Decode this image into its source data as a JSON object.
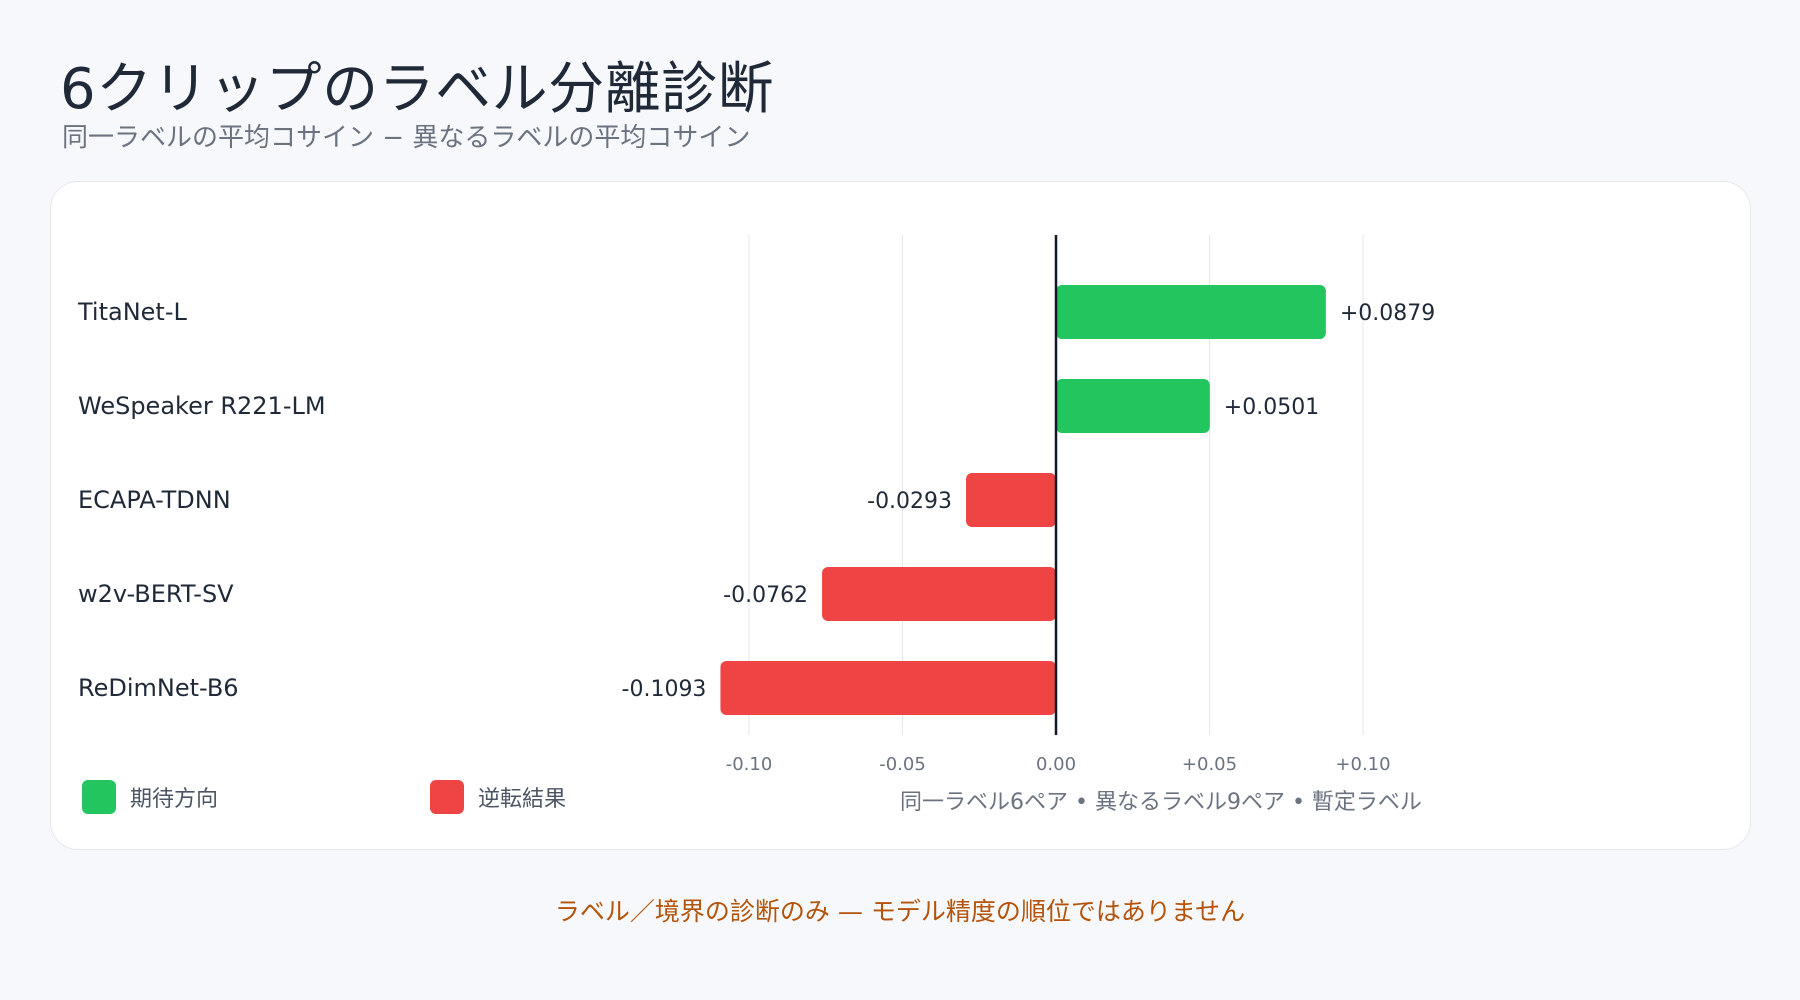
{
  "title": "6クリップのラベル分離診断",
  "subtitle": "同一ラベルの平均コサイン − 異なるラベルの平均コサイン",
  "colors": {
    "expected": "#22c55e",
    "reversed": "#ef4444",
    "zero_line": "#111827",
    "grid": "#e5e7eb",
    "tick_label": "#6b7280",
    "row_label": "#1f2937"
  },
  "legend": {
    "expected_label": "期待方向",
    "reversed_label": "逆転結果"
  },
  "footnote": "同一ラベル6ペア • 異なるラベル9ペア • 暫定ラベル",
  "caveat": "ラベル／境界の診断のみ — モデル精度の順位ではありません",
  "chart_data": {
    "type": "bar",
    "orientation": "horizontal",
    "categories": [
      "TitaNet-L",
      "WeSpeaker R221-LM",
      "ECAPA-TDNN",
      "w2v-BERT-SV",
      "ReDimNet-B6"
    ],
    "values": [
      0.0879,
      0.0501,
      -0.0293,
      -0.0762,
      -0.1093
    ],
    "value_labels": [
      "+0.0879",
      "+0.0501",
      "-0.0293",
      "-0.0762",
      "-0.1093"
    ],
    "series_status": [
      "expected",
      "expected",
      "reversed",
      "reversed",
      "reversed"
    ],
    "xlim": [
      -0.1,
      0.1
    ],
    "xticks": [
      -0.1,
      -0.05,
      0,
      0.05,
      0.1
    ],
    "xtick_labels": [
      "-0.10",
      "-0.05",
      "0.00",
      "+0.05",
      "+0.10"
    ],
    "grid": true
  }
}
